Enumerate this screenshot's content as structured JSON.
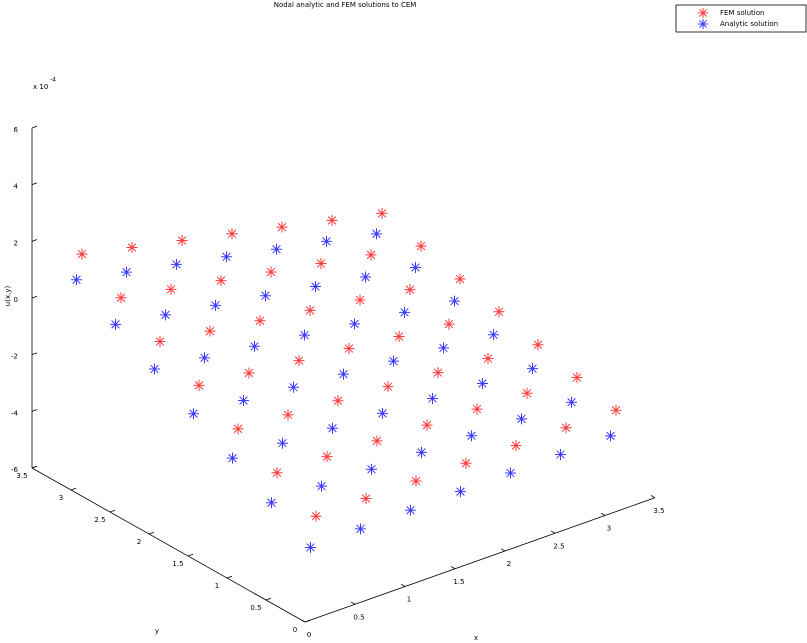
{
  "chart_data": {
    "type": "scatter3d",
    "title": "Nodal analytic and FEM solutions to CEM",
    "xlabel": "x",
    "ylabel": "y",
    "zlabel": "u(x,y)",
    "z_scale_label": "x 10",
    "z_scale_exponent": "-4",
    "xlim": [
      0,
      3.5
    ],
    "ylim": [
      0,
      3.5
    ],
    "zlim": [
      -6,
      6
    ],
    "xticks": [
      0,
      0.5,
      1,
      1.5,
      2,
      2.5,
      3,
      3.5
    ],
    "yticks": [
      0,
      0.5,
      1,
      1.5,
      2,
      2.5,
      3,
      3.5
    ],
    "zticks": [
      -6,
      -4,
      -2,
      0,
      2,
      4,
      6
    ],
    "grid": false,
    "legend": "northeast",
    "series": [
      {
        "name": "FEM solution",
        "color": "#ff3b3b",
        "x": [
          0.5,
          0.5,
          0.5,
          0.5,
          0.5,
          0.5,
          0.5,
          1,
          1,
          1,
          1,
          1,
          1,
          1,
          1.5,
          1.5,
          1.5,
          1.5,
          1.5,
          1.5,
          1.5,
          2,
          2,
          2,
          2,
          2,
          2,
          2,
          2.5,
          2.5,
          2.5,
          2.5,
          2.5,
          2.5,
          2.5,
          3,
          3,
          3,
          3,
          3,
          3,
          3,
          3.5,
          3.5,
          3.5,
          3.5,
          3.5,
          3.5,
          3.5
        ],
        "y": [
          0.5,
          1,
          1.5,
          2,
          2.5,
          3,
          3.5,
          0.5,
          1,
          1.5,
          2,
          2.5,
          3,
          3.5,
          0.5,
          1,
          1.5,
          2,
          2.5,
          3,
          3.5,
          0.5,
          1,
          1.5,
          2,
          2.5,
          3,
          3.5,
          0.5,
          1,
          1.5,
          2,
          2.5,
          3,
          3.5,
          0.5,
          1,
          1.5,
          2,
          2.5,
          3,
          3.5,
          0.5,
          1,
          1.5,
          2,
          2.5,
          3,
          3.5
        ],
        "z": [
          -3.67,
          -2.91,
          -2.14,
          -1.38,
          -0.61,
          0.16,
          0.92,
          -3.67,
          -2.97,
          -2.27,
          -1.57,
          -0.87,
          -0.17,
          0.53,
          -3.68,
          -3.04,
          -2.4,
          -1.76,
          -1.13,
          -0.49,
          0.15,
          -3.68,
          -3.11,
          -2.53,
          -1.96,
          -1.39,
          -0.81,
          -0.24,
          -3.68,
          -3.17,
          -2.66,
          -2.16,
          -1.65,
          -1.14,
          -0.63,
          -3.68,
          -3.24,
          -2.79,
          -2.35,
          -1.91,
          -1.46,
          -1.02,
          -3.69,
          -3.31,
          -2.93,
          -2.54,
          -2.16,
          -1.78,
          -1.4
        ]
      },
      {
        "name": "Analytic solution",
        "color": "#3b3bff",
        "x": [
          0.25,
          0.25,
          0.25,
          0.25,
          0.25,
          0.25,
          0.25,
          0.75,
          0.75,
          0.75,
          0.75,
          0.75,
          0.75,
          0.75,
          1.25,
          1.25,
          1.25,
          1.25,
          1.25,
          1.25,
          1.25,
          1.75,
          1.75,
          1.75,
          1.75,
          1.75,
          1.75,
          1.75,
          2.25,
          2.25,
          2.25,
          2.25,
          2.25,
          2.25,
          2.25,
          2.75,
          2.75,
          2.75,
          2.75,
          2.75,
          2.75,
          2.75,
          3.25,
          3.25,
          3.25,
          3.25,
          3.25,
          3.25,
          3.25
        ],
        "y": [
          0.25,
          0.75,
          1.25,
          1.75,
          2.25,
          2.75,
          3.25,
          0.25,
          0.75,
          1.25,
          1.75,
          2.25,
          2.75,
          3.25,
          0.25,
          0.75,
          1.25,
          1.75,
          2.25,
          2.75,
          3.25,
          0.25,
          0.75,
          1.25,
          1.75,
          2.25,
          2.75,
          3.25,
          0.25,
          0.75,
          1.25,
          1.75,
          2.25,
          2.75,
          3.25,
          0.25,
          0.75,
          1.25,
          1.75,
          2.25,
          2.75,
          3.25,
          0.25,
          0.75,
          1.25,
          1.75,
          2.25,
          2.75,
          3.25
        ],
        "z": [
          -4.07,
          -3.27,
          -2.47,
          -1.68,
          -0.88,
          -0.08,
          0.72,
          -4.04,
          -3.31,
          -2.57,
          -1.84,
          -1.11,
          -0.37,
          0.36,
          -4.01,
          -3.34,
          -2.67,
          -2.0,
          -1.33,
          -0.66,
          0.01,
          -3.98,
          -3.37,
          -2.77,
          -2.16,
          -1.56,
          -0.95,
          -0.35,
          -3.95,
          -3.41,
          -2.87,
          -2.33,
          -1.79,
          -1.25,
          -0.71,
          -3.92,
          -3.44,
          -2.97,
          -2.49,
          -2.01,
          -1.54,
          -1.06,
          -3.89,
          -3.48,
          -3.07,
          -2.65,
          -2.24,
          -1.83,
          -1.42
        ]
      }
    ]
  }
}
